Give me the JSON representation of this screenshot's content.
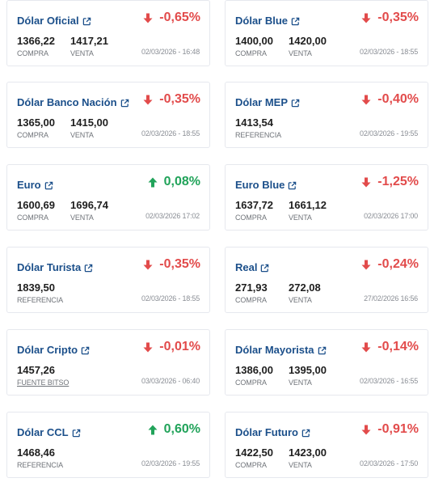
{
  "colors": {
    "title": "#1b4f8a",
    "down": "#e24b4b",
    "up": "#21a35a"
  },
  "cards": [
    {
      "title": "Dólar Oficial",
      "change": "-0,65%",
      "direction": "down",
      "values": [
        {
          "num": "1366,22",
          "label": "COMPRA"
        },
        {
          "num": "1417,21",
          "label": "VENTA"
        }
      ],
      "date": "02/03/2026 - 16:48"
    },
    {
      "title": "Dólar Blue",
      "change": "-0,35%",
      "direction": "down",
      "values": [
        {
          "num": "1400,00",
          "label": "COMPRA"
        },
        {
          "num": "1420,00",
          "label": "VENTA"
        }
      ],
      "date": "02/03/2026 - 18:55"
    },
    {
      "title": "Dólar Banco Nación",
      "change": "-0,35%",
      "direction": "down",
      "values": [
        {
          "num": "1365,00",
          "label": "COMPRA"
        },
        {
          "num": "1415,00",
          "label": "VENTA"
        }
      ],
      "date": "02/03/2026 - 18:55"
    },
    {
      "title": "Dólar MEP",
      "change": "-0,40%",
      "direction": "down",
      "values": [
        {
          "num": "1413,54",
          "label": "REFERENCIA"
        }
      ],
      "date": "02/03/2026 - 19:55"
    },
    {
      "title": "Euro",
      "change": "0,08%",
      "direction": "up",
      "values": [
        {
          "num": "1600,69",
          "label": "COMPRA"
        },
        {
          "num": "1696,74",
          "label": "VENTA"
        }
      ],
      "date": "02/03/2026 17:02"
    },
    {
      "title": "Euro Blue",
      "change": "-1,25%",
      "direction": "down",
      "values": [
        {
          "num": "1637,72",
          "label": "COMPRA"
        },
        {
          "num": "1661,12",
          "label": "VENTA"
        }
      ],
      "date": "02/03/2026 17:00"
    },
    {
      "title": "Dólar Turista",
      "change": "-0,35%",
      "direction": "down",
      "values": [
        {
          "num": "1839,50",
          "label": "REFERENCIA"
        }
      ],
      "date": "02/03/2026 - 18:55"
    },
    {
      "title": "Real",
      "change": "-0,24%",
      "direction": "down",
      "values": [
        {
          "num": "271,93",
          "label": "COMPRA"
        },
        {
          "num": "272,08",
          "label": "VENTA"
        }
      ],
      "date": "27/02/2026 16:56"
    },
    {
      "title": "Dólar Cripto",
      "change": "-0,01%",
      "direction": "down",
      "values": [
        {
          "num": "1457,26",
          "label": "FUENTE BITSO",
          "underline": true
        }
      ],
      "date": "03/03/2026 - 06:40"
    },
    {
      "title": "Dólar Mayorista",
      "change": "-0,14%",
      "direction": "down",
      "values": [
        {
          "num": "1386,00",
          "label": "COMPRA"
        },
        {
          "num": "1395,00",
          "label": "VENTA"
        }
      ],
      "date": "02/03/2026 - 16:55"
    },
    {
      "title": "Dólar CCL",
      "change": "0,60%",
      "direction": "up",
      "values": [
        {
          "num": "1468,46",
          "label": "REFERENCIA"
        }
      ],
      "date": "02/03/2026 - 19:55"
    },
    {
      "title": "Dólar Futuro",
      "change": "-0,91%",
      "direction": "down",
      "values": [
        {
          "num": "1422,50",
          "label": "COMPRA"
        },
        {
          "num": "1423,00",
          "label": "VENTA"
        }
      ],
      "date": "02/03/2026 - 17:50"
    }
  ]
}
